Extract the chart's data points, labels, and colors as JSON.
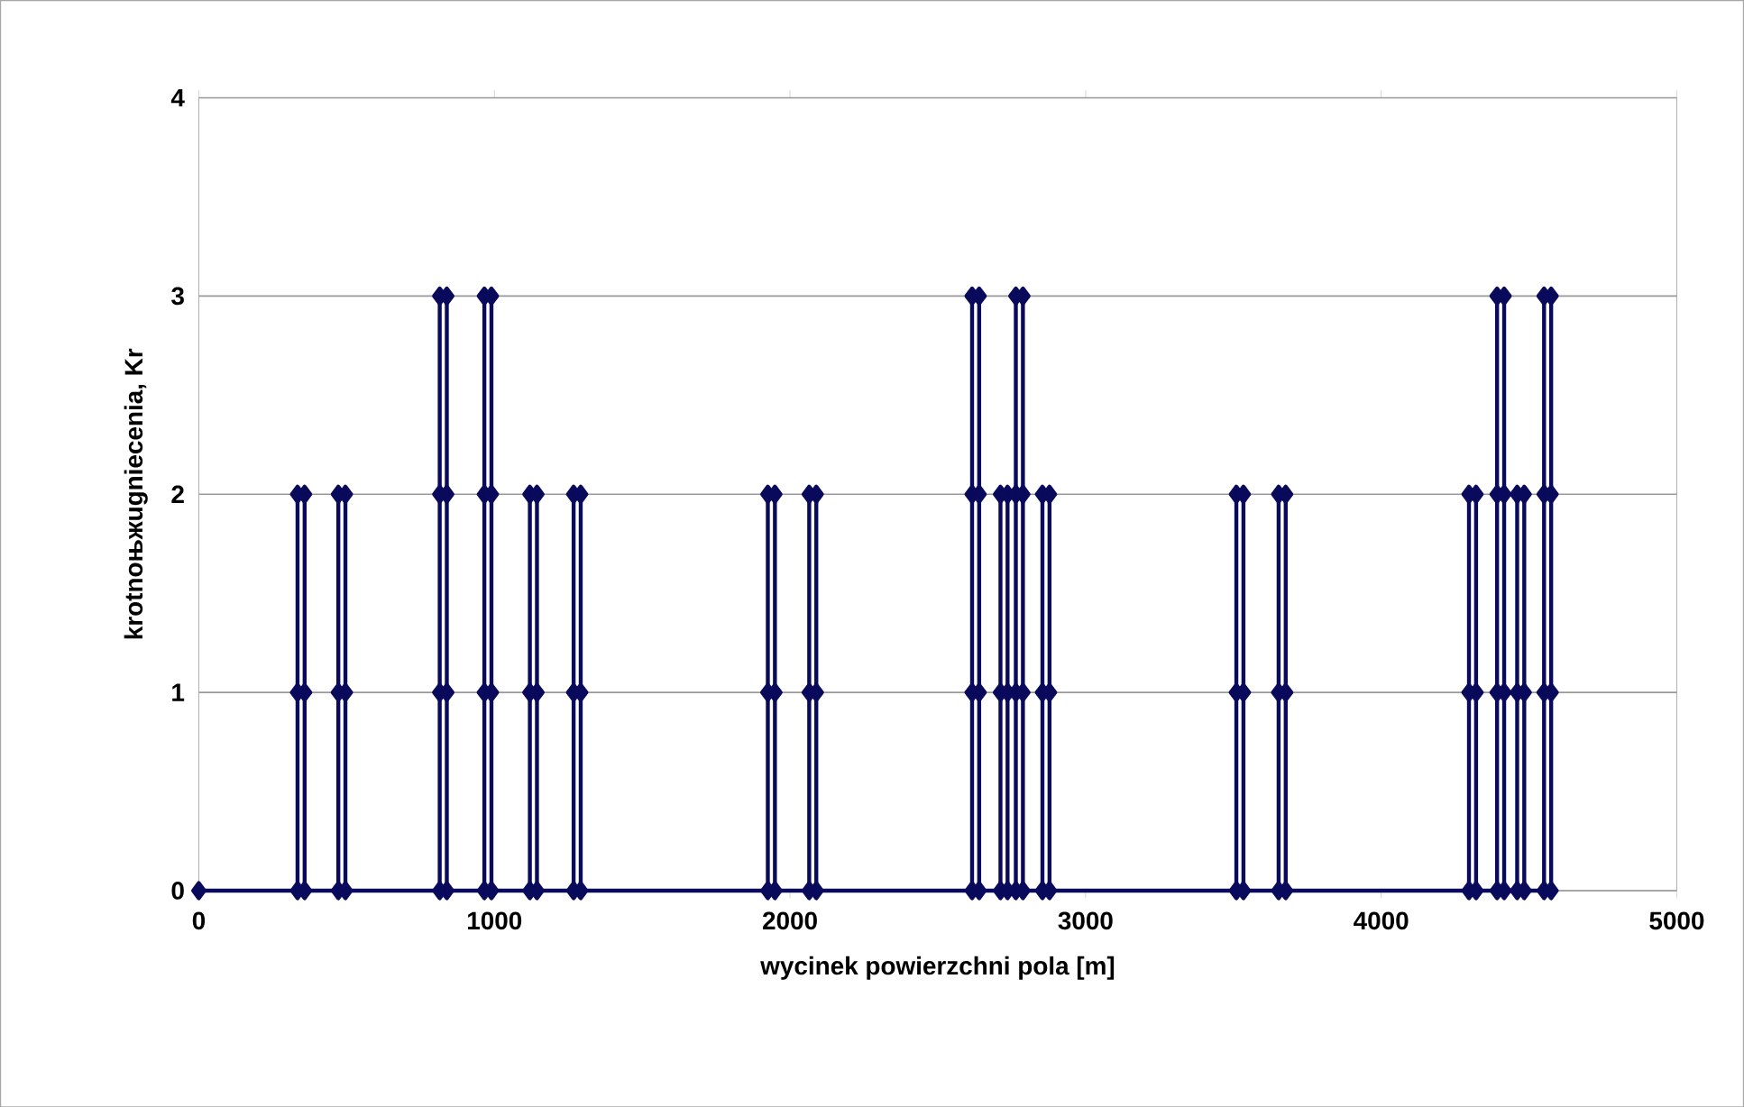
{
  "chart_data": {
    "type": "line",
    "xlabel": "wycinek powierzchni pola [m]",
    "ylabel": "krotnoњжugniecenia, Kr",
    "x": [
      0,
      334,
      334,
      334,
      358,
      358,
      358,
      472,
      472,
      472,
      496,
      496,
      496,
      815,
      815,
      815,
      815,
      839,
      839,
      839,
      839,
      966,
      966,
      966,
      966,
      990,
      990,
      990,
      990,
      1120,
      1120,
      1120,
      1144,
      1144,
      1144,
      1268,
      1268,
      1268,
      1292,
      1292,
      1292,
      1925,
      1925,
      1925,
      1949,
      1949,
      1949,
      2065,
      2065,
      2065,
      2089,
      2089,
      2089,
      2616,
      2616,
      2616,
      2616,
      2640,
      2640,
      2640,
      2640,
      2712,
      2712,
      2712,
      2736,
      2736,
      2736,
      2764,
      2764,
      2764,
      2764,
      2788,
      2788,
      2788,
      2788,
      2854,
      2854,
      2854,
      2878,
      2878,
      2878,
      3510,
      3510,
      3510,
      3534,
      3534,
      3534,
      3653,
      3653,
      3653,
      3677,
      3677,
      3677,
      4297,
      4297,
      4297,
      4321,
      4321,
      4321,
      4392,
      4392,
      4392,
      4392,
      4416,
      4416,
      4416,
      4416,
      4460,
      4460,
      4460,
      4484,
      4484,
      4484,
      4551,
      4551,
      4551,
      4551,
      4575,
      4575,
      4575,
      4575
    ],
    "values": [
      0,
      0,
      1,
      2,
      2,
      1,
      0,
      0,
      1,
      2,
      2,
      1,
      0,
      0,
      1,
      2,
      3,
      3,
      2,
      1,
      0,
      0,
      1,
      2,
      3,
      3,
      2,
      1,
      0,
      0,
      1,
      2,
      2,
      1,
      0,
      0,
      1,
      2,
      2,
      1,
      0,
      0,
      1,
      2,
      2,
      1,
      0,
      0,
      1,
      2,
      2,
      1,
      0,
      0,
      1,
      2,
      3,
      3,
      2,
      1,
      0,
      0,
      1,
      2,
      2,
      1,
      0,
      0,
      1,
      2,
      3,
      3,
      2,
      1,
      0,
      0,
      1,
      2,
      2,
      1,
      0,
      0,
      1,
      2,
      2,
      1,
      0,
      0,
      1,
      2,
      2,
      1,
      0,
      0,
      1,
      2,
      2,
      1,
      0,
      0,
      1,
      2,
      3,
      3,
      2,
      1,
      0,
      0,
      1,
      2,
      2,
      1,
      0,
      0,
      1,
      2,
      3,
      3,
      2,
      1,
      0
    ],
    "color": "#0a0a5c",
    "marker": "diamond",
    "line_style": "solid",
    "grid": "y",
    "xlim": [
      0,
      5000
    ],
    "xticks": [
      0,
      1000,
      2000,
      3000,
      4000,
      5000
    ],
    "ylim": [
      0,
      4
    ],
    "yticks": [
      0,
      1,
      2,
      3,
      4
    ]
  }
}
